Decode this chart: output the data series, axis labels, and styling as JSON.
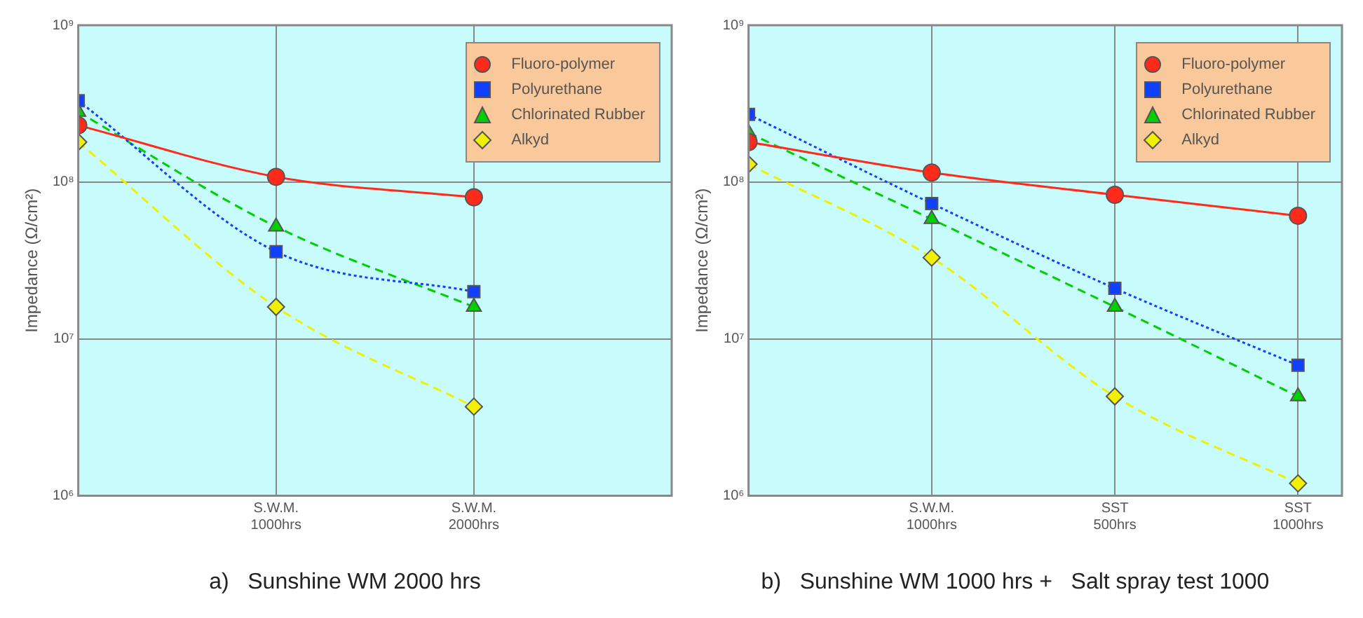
{
  "chart_data": [
    {
      "type": "line",
      "title": "a)   Sunshine WM 2000 hrs",
      "ylabel": "Impedance (Ω/cm²)",
      "categories": [
        null,
        "S.W.M. 1000hrs",
        "S.W.M. 2000hrs"
      ],
      "log": true,
      "ylim": [
        1000000,
        1000000000
      ],
      "yticks": [
        {
          "value": 1000000,
          "label": "10⁶"
        },
        {
          "value": 10000000,
          "label": "10⁷"
        },
        {
          "value": 100000000,
          "label": "10⁸"
        },
        {
          "value": 1000000000,
          "label": "10⁹"
        }
      ],
      "grid": true,
      "legend": "top right",
      "series": [
        {
          "name": "Fluoro-polymer",
          "color": "#ff2a1a",
          "marker": "circle",
          "line_style": "solid",
          "values": [
            230000000,
            108000000,
            80000000
          ]
        },
        {
          "name": "Polyurethane",
          "color": "#1040ff",
          "marker": "square",
          "line_style": "dotted",
          "values": [
            330000000,
            36000000,
            20000000
          ]
        },
        {
          "name": "Chlorinated Rubber",
          "color": "#00d000",
          "marker": "triangle",
          "line_style": "dashed",
          "values": [
            280000000,
            52000000,
            16000000
          ]
        },
        {
          "name": "Alkyd",
          "color": "#f0f000",
          "marker": "diamond",
          "line_style": "dashed",
          "values": [
            180000000,
            16000000,
            3700000
          ]
        }
      ]
    },
    {
      "type": "line",
      "title": "b)   Sunshine WM 1000 hrs +   Salt spray test 1000",
      "ylabel": "Impedance (Ω/cm²)",
      "categories": [
        null,
        "S.W.M. 1000hrs",
        "SST 500hrs",
        "SST 1000hrs"
      ],
      "log": true,
      "ylim": [
        1000000,
        1000000000
      ],
      "yticks": [
        {
          "value": 1000000,
          "label": "10⁶"
        },
        {
          "value": 10000000,
          "label": "10⁷"
        },
        {
          "value": 100000000,
          "label": "10⁸"
        },
        {
          "value": 1000000000,
          "label": "10⁹"
        }
      ],
      "grid": true,
      "legend": "top right",
      "series": [
        {
          "name": "Fluoro-polymer",
          "color": "#ff2a1a",
          "marker": "circle",
          "line_style": "solid",
          "values": [
            180000000,
            115000000,
            83000000,
            61000000
          ]
        },
        {
          "name": "Polyurethane",
          "color": "#1040ff",
          "marker": "square",
          "line_style": "dotted",
          "values": [
            270000000,
            73000000,
            21000000,
            6800000
          ]
        },
        {
          "name": "Chlorinated Rubber",
          "color": "#00d000",
          "marker": "triangle",
          "line_style": "dashed",
          "values": [
            206000000,
            58000000,
            16000000,
            4300000
          ]
        },
        {
          "name": "Alkyd",
          "color": "#f0f000",
          "marker": "diamond",
          "line_style": "dashed",
          "values": [
            130000000,
            33000000,
            4300000,
            1200000
          ]
        }
      ]
    }
  ]
}
